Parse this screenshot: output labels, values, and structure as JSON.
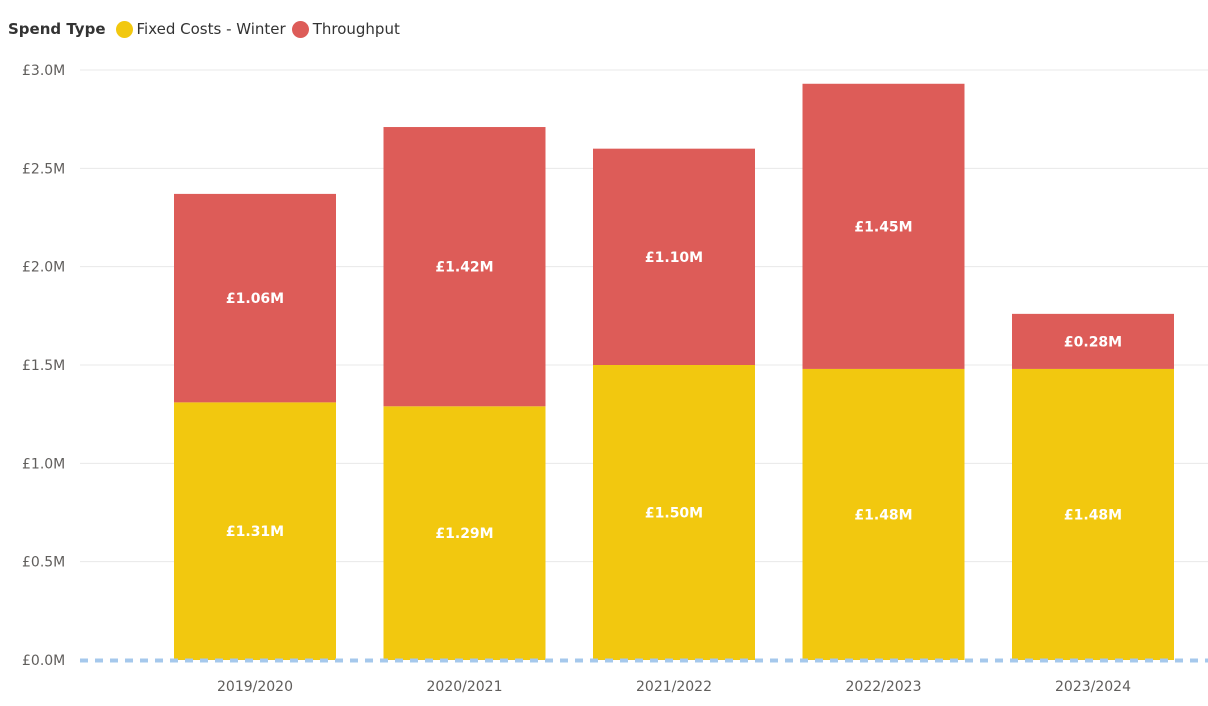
{
  "chart_data": {
    "type": "bar",
    "stacked": true,
    "legend": {
      "title": "Spend Type",
      "placement": "top-left"
    },
    "categories": [
      "2019/2020",
      "2020/2021",
      "2021/2022",
      "2022/2023",
      "2023/2024"
    ],
    "series": [
      {
        "name": "Fixed Costs - Winter",
        "color": "#f2c80f",
        "values": [
          1.31,
          1.29,
          1.5,
          1.48,
          1.48
        ],
        "labels": [
          "£1.31M",
          "£1.29M",
          "£1.50M",
          "£1.48M",
          "£1.48M"
        ]
      },
      {
        "name": "Throughput",
        "color": "#dd5c58",
        "values": [
          1.06,
          1.42,
          1.1,
          1.45,
          0.28
        ],
        "labels": [
          "£1.06M",
          "£1.42M",
          "£1.10M",
          "£1.45M",
          "£0.28M"
        ]
      }
    ],
    "ylim": [
      0,
      3.0
    ],
    "y_ticks": [
      0,
      0.5,
      1.0,
      1.5,
      2.0,
      2.5,
      3.0
    ],
    "y_tick_labels": [
      "£0.0M",
      "£0.5M",
      "£1.0M",
      "£1.5M",
      "£2.0M",
      "£2.5M",
      "£3.0M"
    ],
    "grid": true,
    "baseline_color": "#a5c8ec"
  }
}
